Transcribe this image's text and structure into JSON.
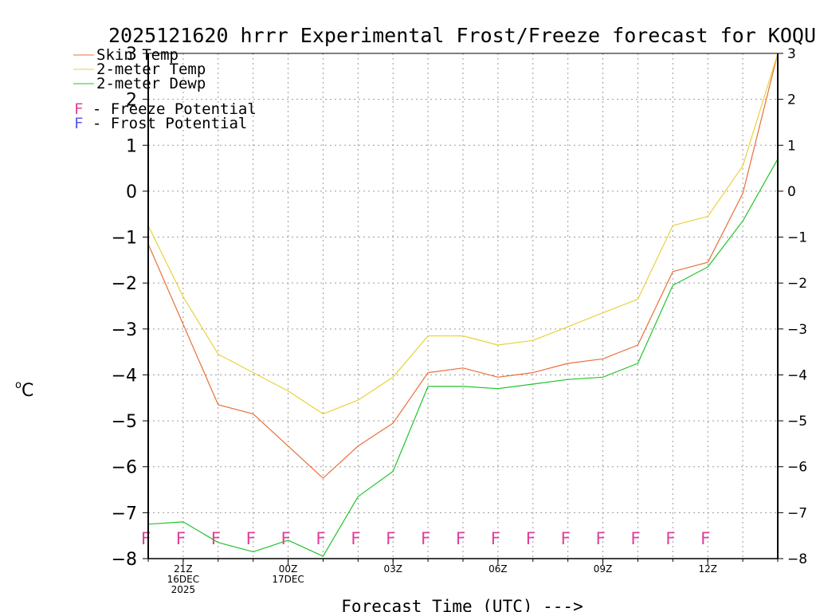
{
  "chart_data": {
    "type": "line",
    "title": "2025121620 hrrr Experimental Frost/Freeze forecast for KOQU",
    "ylabel": "°C",
    "ylabel_base": "C",
    "ylabel_sup": "o",
    "xlabel": "Forecast Time (UTC) --->",
    "ylim": [
      -8,
      3
    ],
    "yticks": [
      -8,
      -7,
      -6,
      -5,
      -4,
      -3,
      -2,
      -1,
      0,
      1,
      2,
      3
    ],
    "xlim": [
      20,
      38
    ],
    "x": [
      20,
      21,
      22,
      23,
      24,
      25,
      26,
      27,
      28,
      29,
      30,
      31,
      32,
      33,
      34,
      35,
      36,
      37,
      38
    ],
    "xticks": [
      {
        "x": 21,
        "lines": [
          "21Z",
          "16DEC",
          "2025"
        ]
      },
      {
        "x": 24,
        "lines": [
          "00Z",
          "17DEC"
        ]
      },
      {
        "x": 27,
        "lines": [
          "03Z"
        ]
      },
      {
        "x": 30,
        "lines": [
          "06Z"
        ]
      },
      {
        "x": 33,
        "lines": [
          "09Z"
        ]
      },
      {
        "x": 36,
        "lines": [
          "12Z"
        ]
      }
    ],
    "series": [
      {
        "name": "Skin Temp",
        "color": "#e8703a",
        "values": [
          -1.15,
          -2.9,
          -4.65,
          -4.85,
          -5.55,
          -6.25,
          -5.55,
          -5.05,
          -3.95,
          -3.85,
          -4.05,
          -3.95,
          -3.75,
          -3.65,
          -3.35,
          -1.75,
          -1.55,
          -0.05,
          3.0
        ]
      },
      {
        "name": "2-meter Temp",
        "color": "#e8d23c",
        "values": [
          -0.75,
          -2.3,
          -3.55,
          -3.95,
          -4.35,
          -4.85,
          -4.55,
          -4.05,
          -3.15,
          -3.15,
          -3.35,
          -3.25,
          -2.95,
          -2.65,
          -2.35,
          -0.75,
          -0.55,
          0.55,
          3.0
        ]
      },
      {
        "name": "2-meter Dewp",
        "color": "#22c42a",
        "values": [
          -7.25,
          -7.2,
          -7.65,
          -7.85,
          -7.6,
          -7.95,
          -6.65,
          -6.1,
          -4.25,
          -4.25,
          -4.3,
          -4.2,
          -4.1,
          -4.05,
          -3.75,
          -2.05,
          -1.65,
          -0.65,
          0.7
        ]
      }
    ],
    "legend": [
      {
        "label": "Skin Temp",
        "color": "#e8703a"
      },
      {
        "label": "2-meter Temp",
        "color": "#e8d23c"
      },
      {
        "label": "2-meter Dewp",
        "color": "#22c42a"
      }
    ],
    "potential_legend": [
      {
        "symbol": "F",
        "label": " - Freeze Potential",
        "color": "#e0409a"
      },
      {
        "symbol": "F",
        "label": " - Frost Potential",
        "color": "#5a5ae6"
      }
    ],
    "freeze_flags": {
      "symbol": "F",
      "color": "#e0409a",
      "y": -7.55,
      "x": [
        20,
        21,
        22,
        23,
        24,
        25,
        26,
        27,
        28,
        29,
        30,
        31,
        32,
        33,
        34,
        35,
        36
      ]
    },
    "grid": true,
    "legend_position": "top-left"
  }
}
